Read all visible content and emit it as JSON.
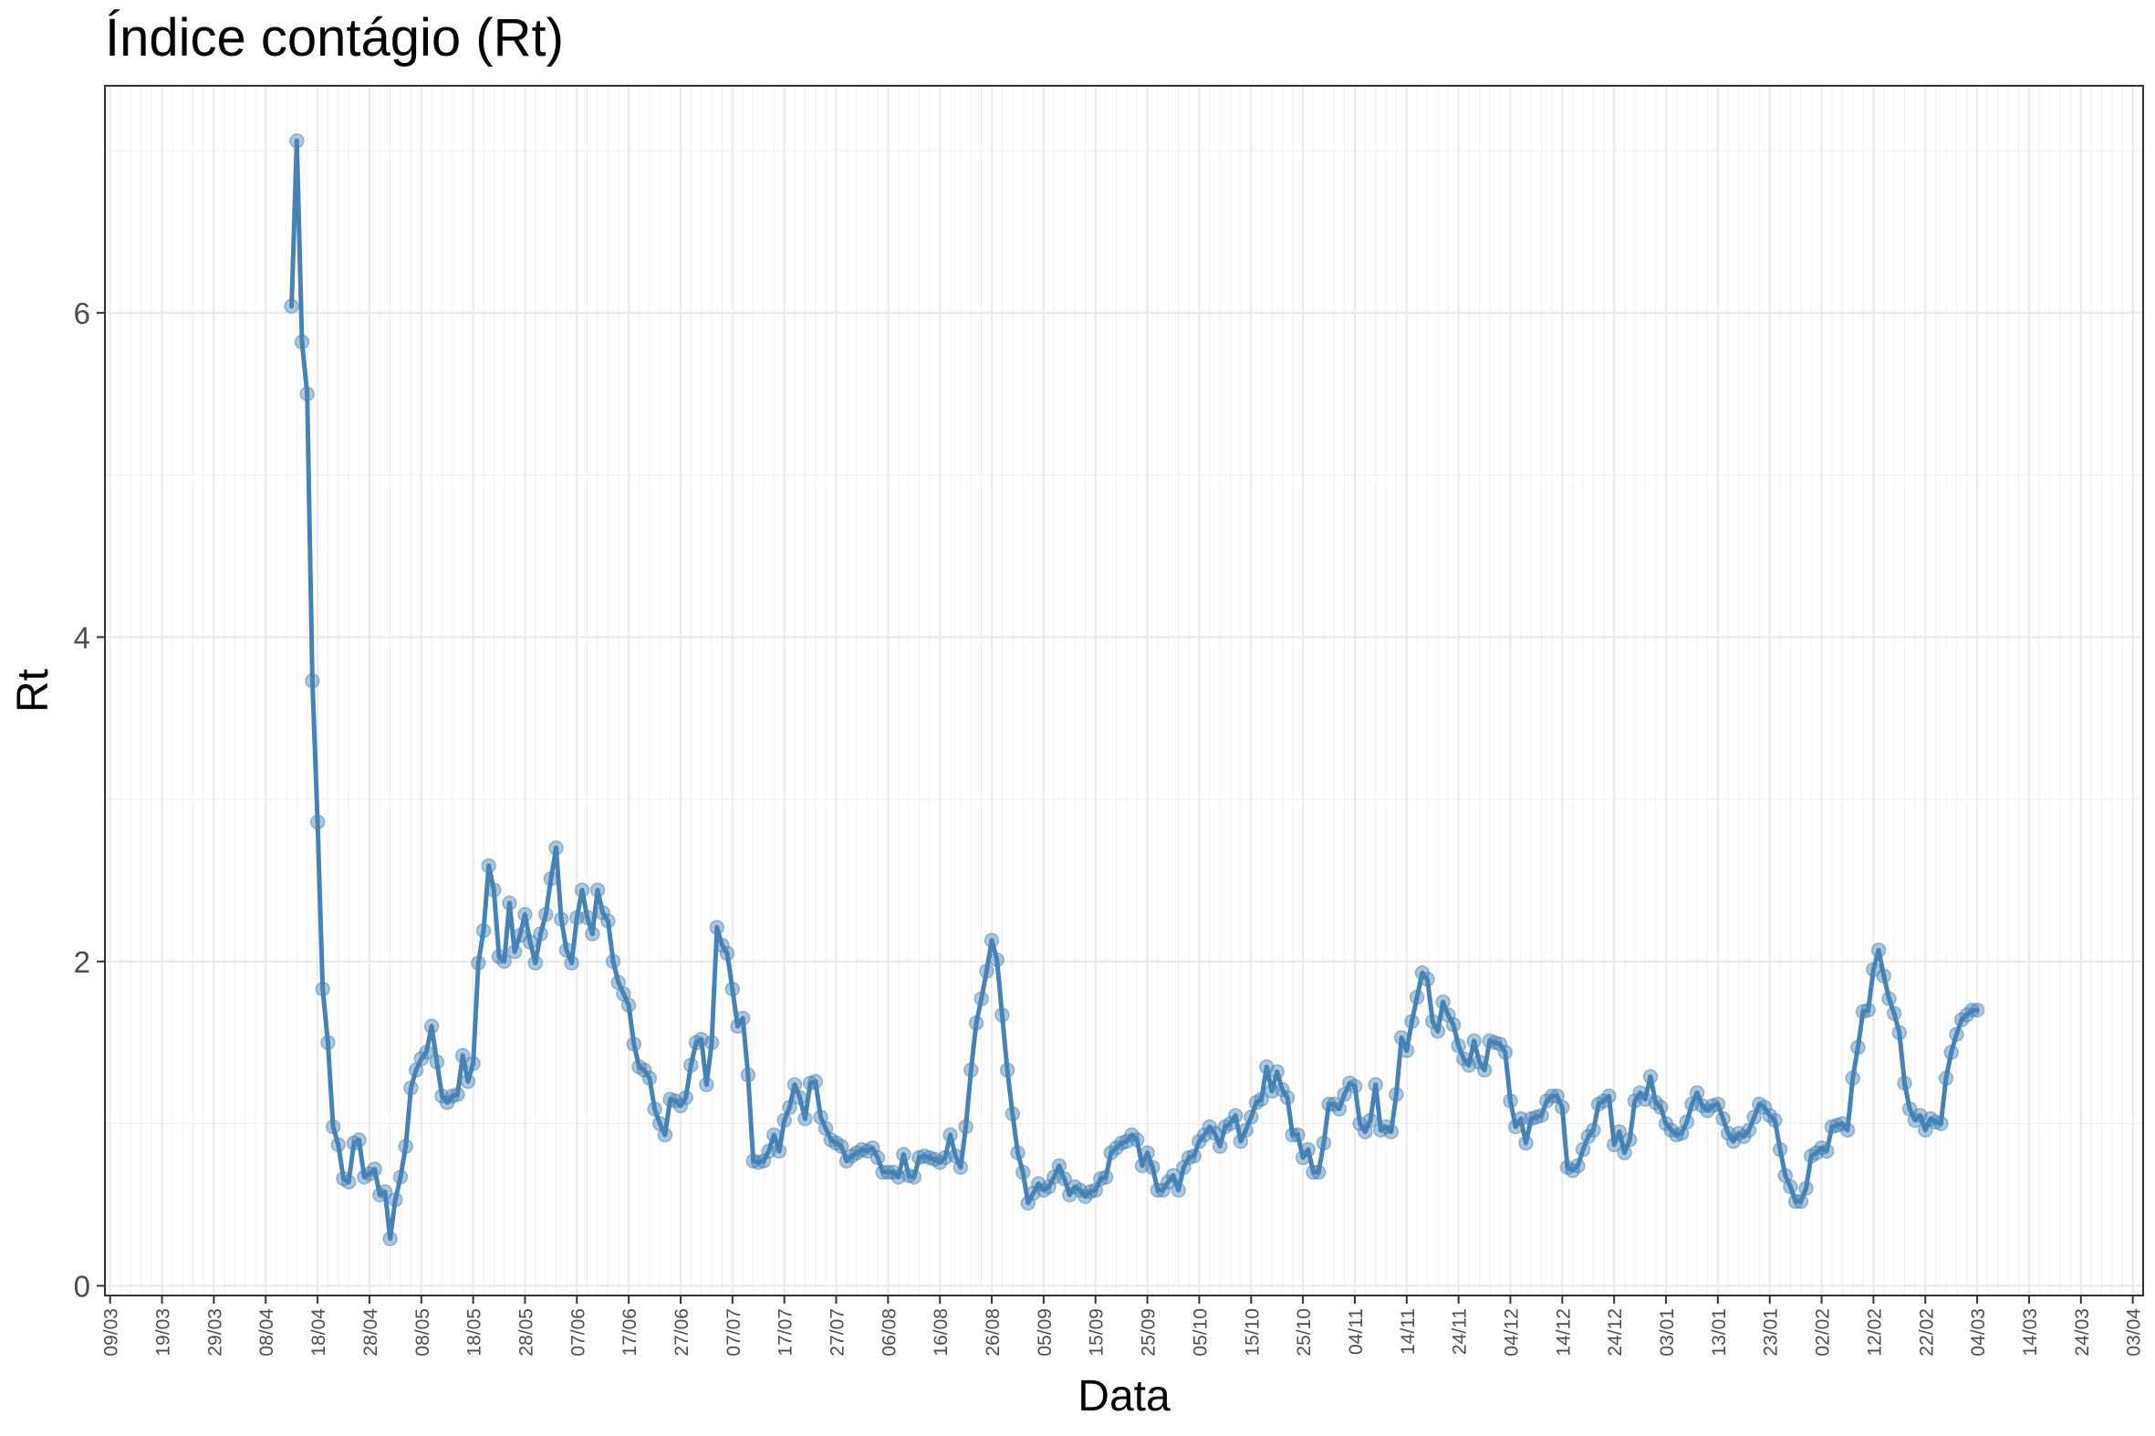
{
  "chart_data": {
    "type": "line",
    "title": "Índice contágio (Rt)",
    "xlabel": "Data",
    "ylabel": "Rt",
    "ylim": [
      -0.06,
      7.4
    ],
    "yticks": [
      0,
      2,
      4,
      6
    ],
    "grid": true,
    "line_color": "#4682B4",
    "x_tick_labels": [
      "09/03",
      "19/03",
      "29/03",
      "08/04",
      "18/04",
      "28/04",
      "08/05",
      "18/05",
      "28/05",
      "07/06",
      "17/06",
      "27/06",
      "07/07",
      "17/07",
      "27/07",
      "06/08",
      "16/08",
      "26/08",
      "05/09",
      "15/09",
      "25/09",
      "05/10",
      "15/10",
      "25/10",
      "04/11",
      "14/11",
      "24/11",
      "04/12",
      "14/12",
      "24/12",
      "03/01",
      "13/01",
      "23/01",
      "02/02",
      "12/02",
      "22/02",
      "04/03",
      "14/03",
      "24/03",
      "03/04"
    ],
    "x_start_date": "2020-03-09",
    "x_range_days": [
      -1,
      392
    ],
    "x_tick_step_days": 10,
    "series": [
      {
        "name": "",
        "start_date": "2020-04-13",
        "values": [
          6.04,
          7.06,
          5.82,
          5.5,
          3.73,
          2.86,
          1.83,
          1.5,
          0.98,
          0.87,
          0.66,
          0.64,
          0.88,
          0.9,
          0.67,
          0.69,
          0.72,
          0.56,
          0.58,
          0.29,
          0.53,
          0.67,
          0.86,
          1.22,
          1.33,
          1.4,
          1.44,
          1.6,
          1.38,
          1.17,
          1.13,
          1.17,
          1.18,
          1.42,
          1.26,
          1.37,
          1.99,
          2.19,
          2.59,
          2.44,
          2.03,
          2.0,
          2.36,
          2.06,
          2.16,
          2.29,
          2.12,
          1.99,
          2.17,
          2.29,
          2.51,
          2.7,
          2.26,
          2.07,
          1.99,
          2.27,
          2.44,
          2.27,
          2.17,
          2.44,
          2.3,
          2.25,
          2.0,
          1.87,
          1.8,
          1.73,
          1.49,
          1.35,
          1.33,
          1.28,
          1.09,
          1.0,
          0.93,
          1.15,
          1.14,
          1.11,
          1.16,
          1.36,
          1.5,
          1.52,
          1.24,
          1.5,
          2.21,
          2.1,
          2.05,
          1.83,
          1.6,
          1.65,
          1.3,
          0.77,
          0.76,
          0.77,
          0.83,
          0.93,
          0.83,
          1.02,
          1.1,
          1.24,
          1.16,
          1.03,
          1.25,
          1.26,
          1.04,
          0.97,
          0.9,
          0.88,
          0.86,
          0.77,
          0.8,
          0.82,
          0.84,
          0.83,
          0.85,
          0.79,
          0.7,
          0.7,
          0.7,
          0.67,
          0.81,
          0.68,
          0.67,
          0.79,
          0.8,
          0.79,
          0.78,
          0.76,
          0.79,
          0.93,
          0.8,
          0.73,
          0.98,
          1.33,
          1.62,
          1.77,
          1.94,
          2.13,
          2.01,
          1.67,
          1.33,
          1.06,
          0.82,
          0.7,
          0.51,
          0.57,
          0.63,
          0.59,
          0.61,
          0.67,
          0.74,
          0.66,
          0.56,
          0.61,
          0.59,
          0.55,
          0.58,
          0.59,
          0.66,
          0.67,
          0.82,
          0.85,
          0.88,
          0.89,
          0.93,
          0.9,
          0.74,
          0.82,
          0.73,
          0.59,
          0.59,
          0.64,
          0.68,
          0.59,
          0.73,
          0.79,
          0.8,
          0.89,
          0.93,
          0.98,
          0.94,
          0.86,
          0.98,
          1.0,
          1.05,
          0.89,
          0.96,
          1.04,
          1.13,
          1.15,
          1.35,
          1.2,
          1.32,
          1.21,
          1.16,
          0.93,
          0.93,
          0.79,
          0.84,
          0.7,
          0.7,
          0.88,
          1.12,
          1.12,
          1.09,
          1.18,
          1.25,
          1.23,
          1.0,
          0.95,
          1.02,
          1.24,
          0.96,
          0.98,
          0.95,
          1.18,
          1.53,
          1.45,
          1.63,
          1.78,
          1.93,
          1.89,
          1.63,
          1.57,
          1.75,
          1.67,
          1.61,
          1.48,
          1.4,
          1.36,
          1.51,
          1.38,
          1.33,
          1.51,
          1.5,
          1.49,
          1.44,
          1.14,
          0.98,
          1.03,
          0.88,
          1.03,
          1.04,
          1.05,
          1.14,
          1.17,
          1.17,
          1.1,
          0.73,
          0.71,
          0.74,
          0.84,
          0.92,
          0.96,
          1.12,
          1.14,
          1.17,
          0.87,
          0.95,
          0.82,
          0.9,
          1.14,
          1.19,
          1.15,
          1.29,
          1.13,
          1.1,
          1.0,
          0.96,
          0.93,
          0.94,
          1.01,
          1.12,
          1.19,
          1.11,
          1.08,
          1.11,
          1.12,
          1.03,
          0.94,
          0.89,
          0.94,
          0.92,
          0.96,
          1.04,
          1.12,
          1.1,
          1.05,
          1.02,
          0.84,
          0.68,
          0.61,
          0.52,
          0.52,
          0.6,
          0.8,
          0.82,
          0.85,
          0.83,
          0.98,
          0.99,
          1.0,
          0.96,
          1.28,
          1.47,
          1.69,
          1.7,
          1.95,
          2.07,
          1.91,
          1.77,
          1.68,
          1.56,
          1.25,
          1.09,
          1.02,
          1.05,
          0.96,
          1.03,
          1.01,
          1.0,
          1.28,
          1.44,
          1.55,
          1.64,
          1.67,
          1.7,
          1.7
        ]
      }
    ]
  }
}
